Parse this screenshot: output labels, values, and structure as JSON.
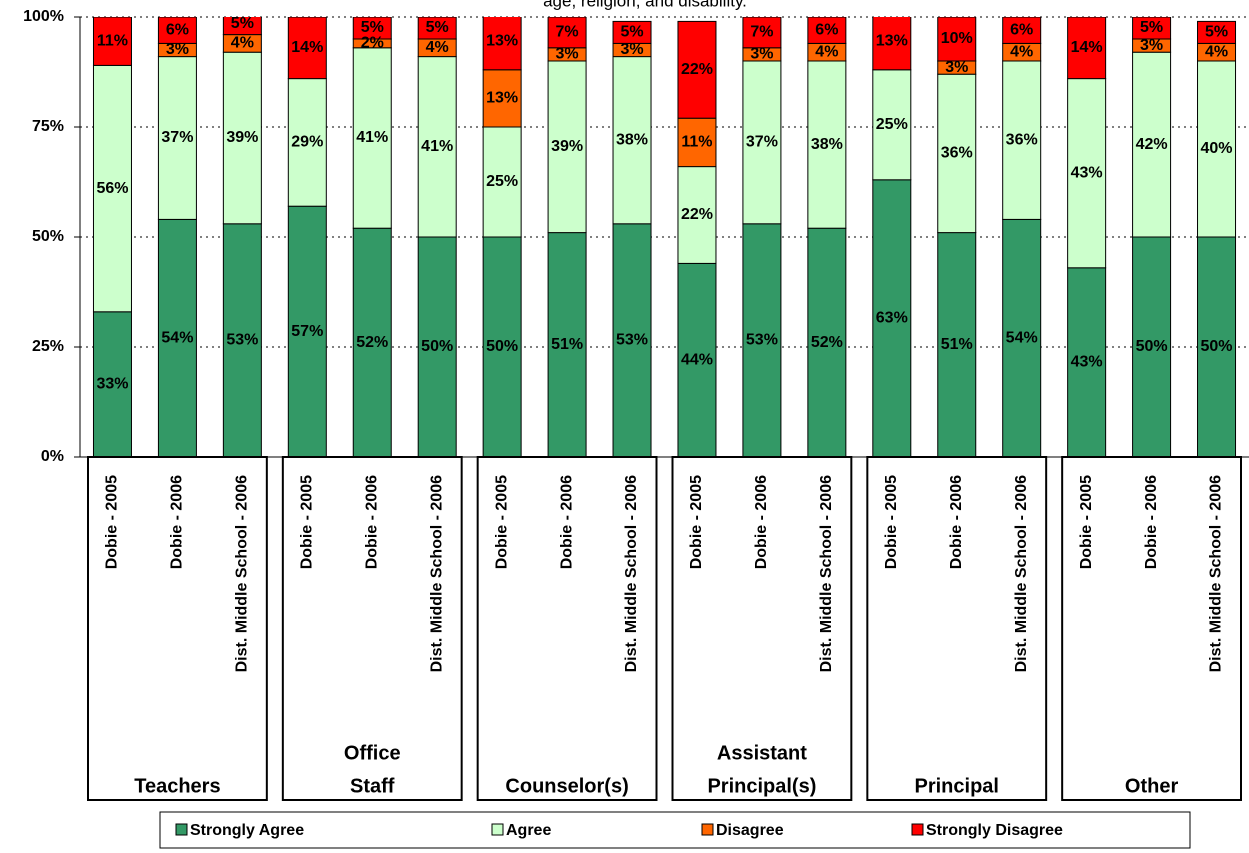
{
  "chart_data": {
    "type": "stacked_bar",
    "title": "age, religion, and disability.",
    "categories": [
      "Dobie - 2005",
      "Dobie - 2006",
      "Dist. Middle School - 2006",
      "Dobie - 2005",
      "Dobie - 2006",
      "Dist. Middle School - 2006",
      "Dobie - 2005",
      "Dobie - 2006",
      "Dist. Middle School - 2006",
      "Dobie - 2005",
      "Dobie - 2006",
      "Dist. Middle School - 2006",
      "Dobie - 2005",
      "Dobie - 2006",
      "Dist. Middle School - 2006",
      "Dobie - 2005",
      "Dobie - 2006",
      "Dist. Middle School - 2006"
    ],
    "groups": [
      [
        "Teachers"
      ],
      [
        "Office",
        "Staff"
      ],
      [
        "Counselor(s)"
      ],
      [
        "Assistant",
        "Principal(s)"
      ],
      [
        "Principal"
      ],
      [
        "Other"
      ]
    ],
    "series": [
      {
        "name": "Strongly Agree",
        "color": "#339966",
        "values": [
          33,
          54,
          53,
          57,
          52,
          50,
          50,
          51,
          53,
          44,
          53,
          52,
          63,
          51,
          54,
          43,
          50,
          50
        ],
        "value_labels": [
          "33%",
          "54%",
          "53%",
          "57%",
          "52%",
          "50%",
          "50%",
          "51%",
          "53%",
          "44%",
          "53%",
          "52%",
          "63%",
          "51%",
          "54%",
          "43%",
          "50%",
          "50%"
        ]
      },
      {
        "name": "Agree",
        "color": "#ccffcc",
        "values": [
          56,
          37,
          39,
          29,
          41,
          41,
          25,
          39,
          38,
          22,
          37,
          38,
          25,
          36,
          36,
          43,
          42,
          40
        ],
        "value_labels": [
          "56%",
          "37%",
          "39%",
          "29%",
          "41%",
          "41%",
          "25%",
          "39%",
          "38%",
          "22%",
          "37%",
          "38%",
          "25%",
          "36%",
          "36%",
          "43%",
          "42%",
          "40%"
        ]
      },
      {
        "name": "Disagree",
        "color": "#ff6600",
        "values": [
          null,
          3,
          4,
          null,
          2,
          4,
          13,
          3,
          3,
          11,
          3,
          4,
          null,
          3,
          4,
          null,
          3,
          4
        ],
        "value_labels": [
          null,
          "3%",
          "4%",
          null,
          "2%",
          "4%",
          "13%",
          "3%",
          "3%",
          "11%",
          "3%",
          "4%",
          null,
          "3%",
          "4%",
          null,
          "3%",
          "4%"
        ]
      },
      {
        "name": "Strongly Disagree",
        "color": "#ff0000",
        "values": [
          11,
          6,
          5,
          14,
          5,
          5,
          13,
          7,
          5,
          22,
          7,
          6,
          13,
          10,
          6,
          14,
          5,
          5
        ],
        "value_labels": [
          "11%",
          "6%",
          "5%",
          "14%",
          "5%",
          "5%",
          "13%",
          "7%",
          "5%",
          "22%",
          "7%",
          "6%",
          "13%",
          "10%",
          "6%",
          "14%",
          "5%",
          "5%"
        ]
      }
    ],
    "ylim": [
      0,
      100
    ],
    "yticks": [
      {
        "value": 0,
        "label": "0%"
      },
      {
        "value": 25,
        "label": "25%"
      },
      {
        "value": 50,
        "label": "50%"
      },
      {
        "value": 75,
        "label": "75%"
      },
      {
        "value": 100,
        "label": "100%"
      }
    ],
    "grid": true
  }
}
